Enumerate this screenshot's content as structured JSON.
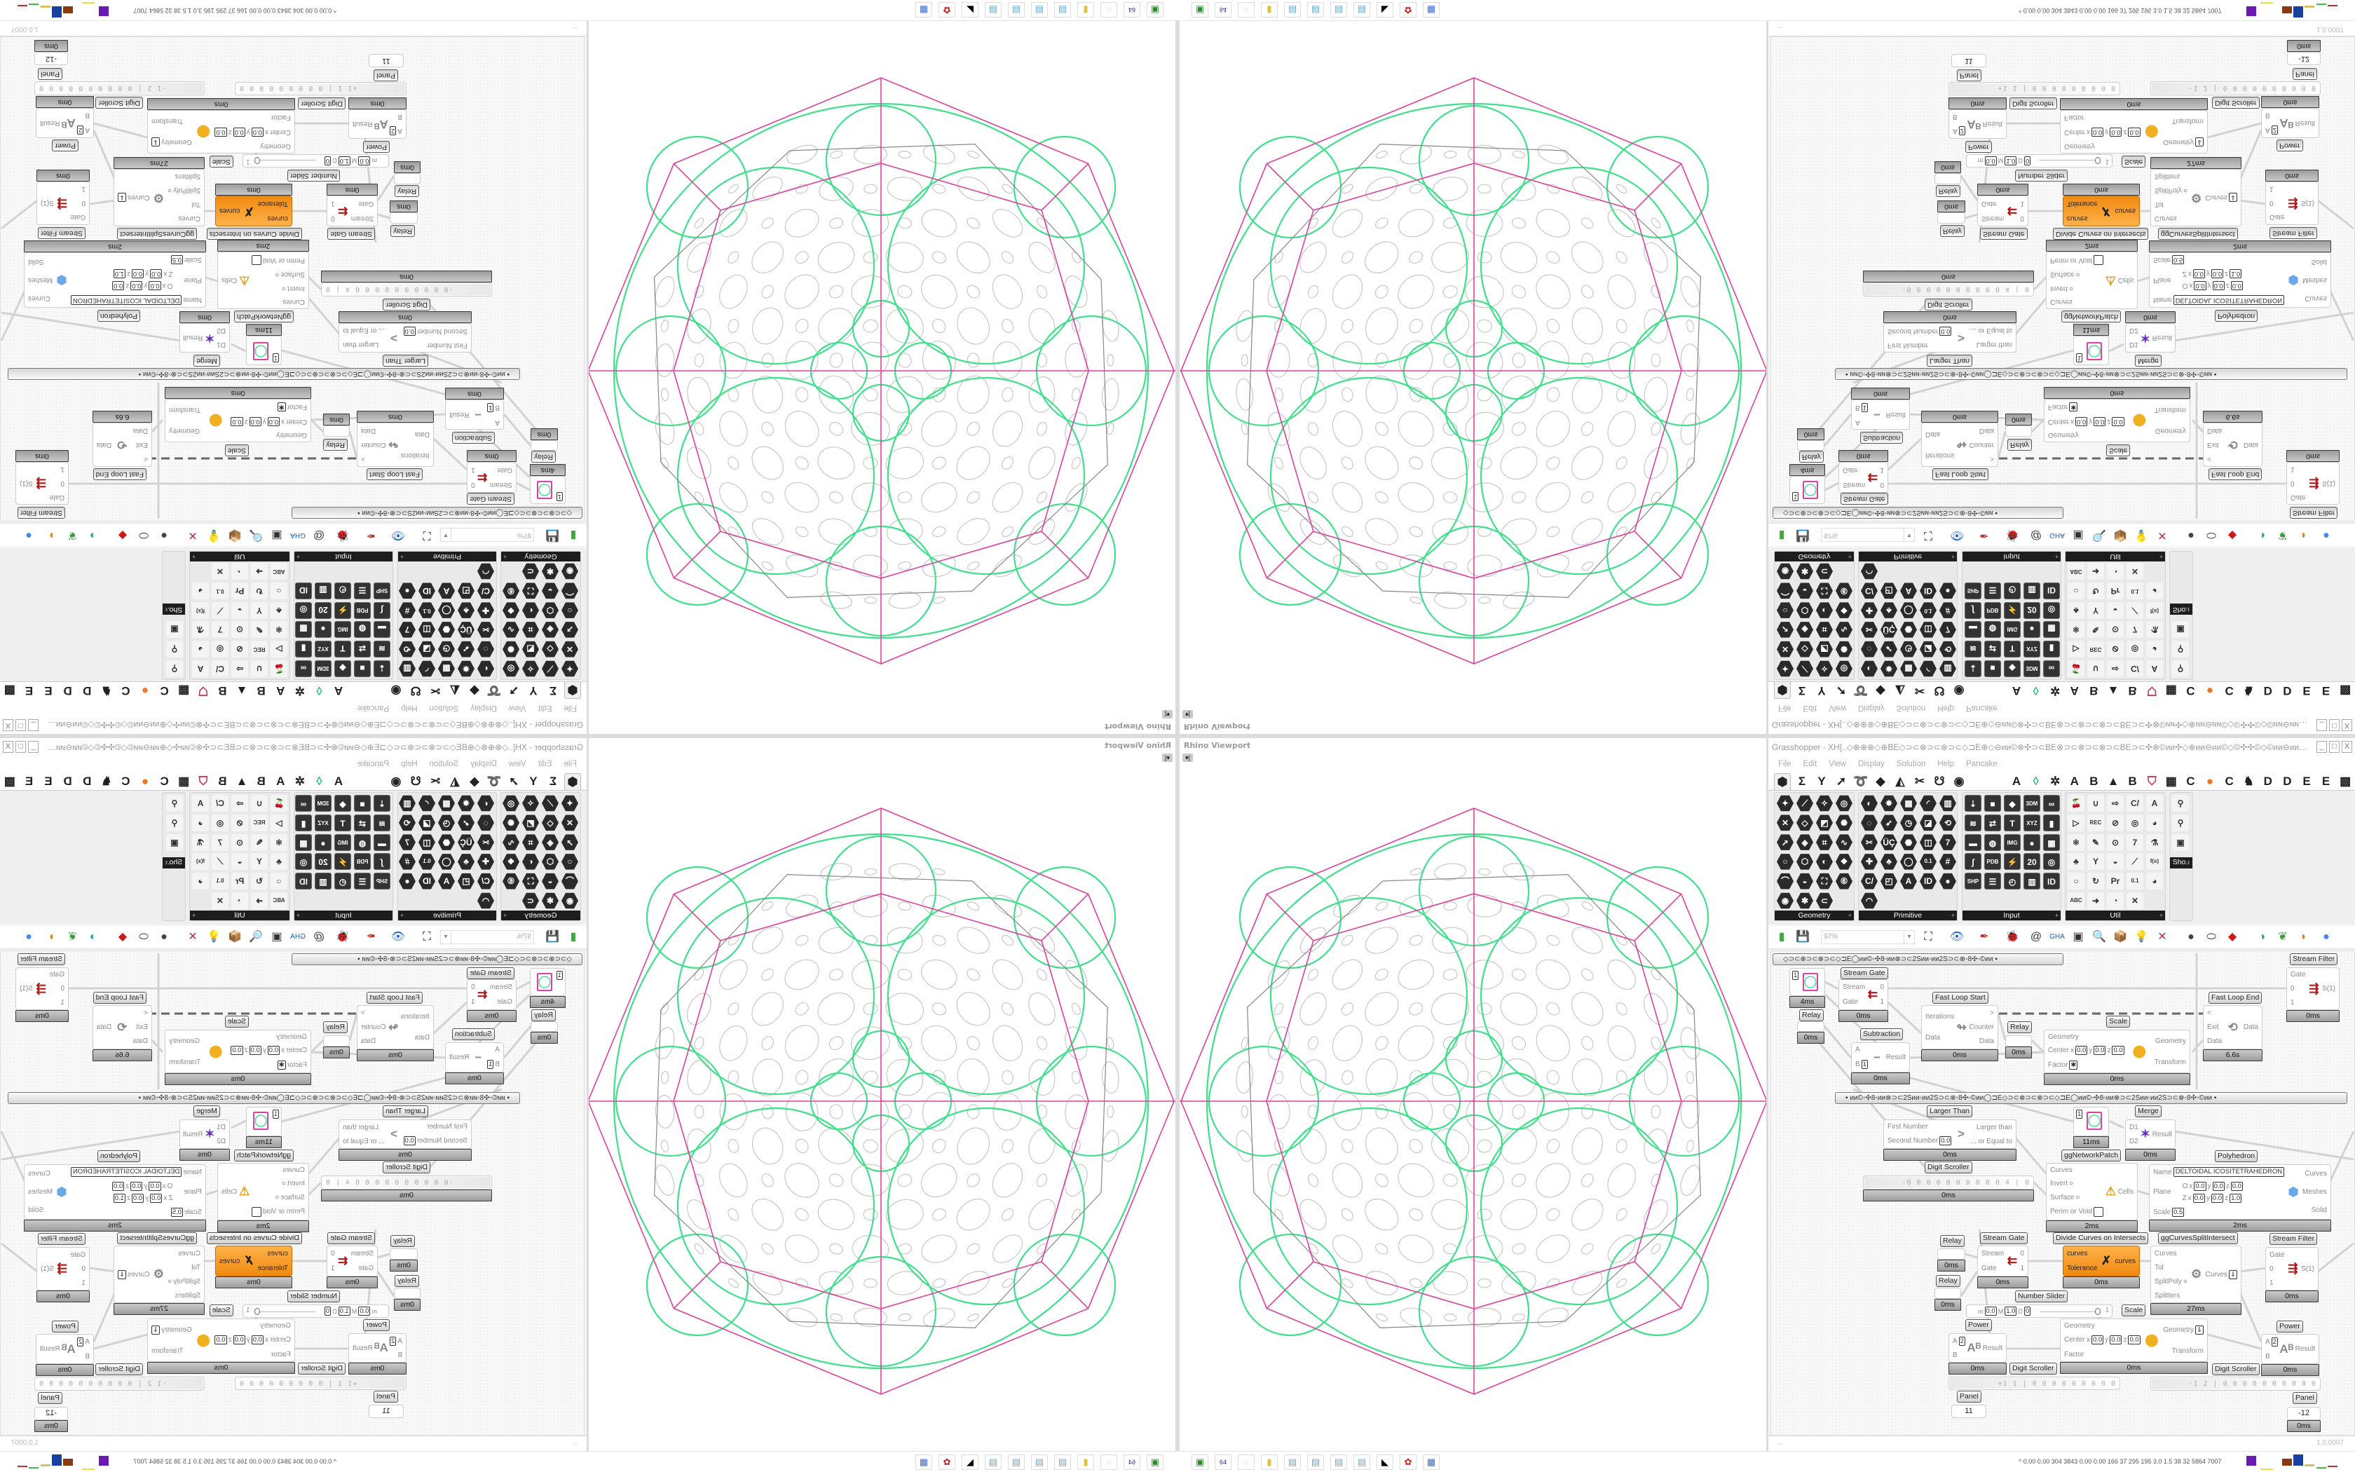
{
  "viewport": {
    "label": "Rhino Viewport",
    "menu_button": "▾|",
    "colors": {
      "outline": "#e0409a",
      "cells": "#3ee08a",
      "pattern": "#c8c8c8"
    }
  },
  "gh": {
    "title": "Grasshopper - XH[..◇⊗⊕⊗◇⊕BE◇⊃⊂⊗⊃⊂⊗⊃⊂◇⊐E⊕◇⊖ии©⊗✣⊃⊂BE⊗⊃⊂⊗⊃⊂⊗⊃⊂BE⊃⊂✣⊗©ии✣◇⊕ии⊖ии©◇©✣✣©◇©ии⊖ии⊕◇ии©⊗✣⊃⊂BE⊗⊃⊂⊗⊃⊂...",
    "window_buttons": [
      "_",
      "□",
      "X"
    ],
    "menu": [
      "File",
      "Edit",
      "View",
      "Display",
      "Solution",
      "Help",
      "Pancake"
    ],
    "tabs_left": [
      {
        "name": "params",
        "glyph": "⬢"
      },
      {
        "name": "maths",
        "glyph": "Σ"
      },
      {
        "name": "sets",
        "glyph": "Y"
      },
      {
        "name": "vector",
        "glyph": "➚"
      },
      {
        "name": "curve",
        "glyph": "➰"
      },
      {
        "name": "surface",
        "glyph": "◆"
      },
      {
        "name": "mesh",
        "glyph": "◭"
      },
      {
        "name": "intersect",
        "glyph": "✂"
      },
      {
        "name": "transform",
        "glyph": "☋"
      },
      {
        "name": "display",
        "glyph": "◉"
      }
    ],
    "tabs_right": [
      {
        "name": "a",
        "glyph": "A"
      },
      {
        "name": "crystal",
        "glyph": "◊",
        "color": "#2fbf7f"
      },
      {
        "name": "puzzle",
        "glyph": "✲"
      },
      {
        "name": "a2",
        "glyph": "A"
      },
      {
        "name": "b",
        "glyph": "B"
      },
      {
        "name": "mountain",
        "glyph": "▲"
      },
      {
        "name": "b2",
        "glyph": "B"
      },
      {
        "name": "shield",
        "glyph": "⛉",
        "color": "#c0304a"
      },
      {
        "name": "grid",
        "glyph": "▦"
      },
      {
        "name": "c",
        "glyph": "C"
      },
      {
        "name": "orange",
        "glyph": "●",
        "color": "#f07820"
      },
      {
        "name": "c2",
        "glyph": "C"
      },
      {
        "name": "bird",
        "glyph": "♞"
      },
      {
        "name": "d",
        "glyph": "D"
      },
      {
        "name": "d2",
        "glyph": "D"
      },
      {
        "name": "e",
        "glyph": "E"
      },
      {
        "name": "e2",
        "glyph": "E"
      },
      {
        "name": "grid2",
        "glyph": "▩"
      }
    ],
    "ribbon": [
      {
        "name": "Geometry",
        "style": "hex",
        "cols": 4,
        "icons": [
          "✦",
          "⟋",
          "✧",
          "◎",
          "✕",
          "◇",
          "◩",
          "✺",
          "➚",
          "◈",
          "⌗",
          "∿",
          "○",
          "⬡",
          "◐",
          "❖",
          "⌒",
          "◒",
          "⛶",
          "⑥",
          "◉",
          "✱",
          "⊂"
        ]
      },
      {
        "name": "Primitive",
        "style": "hex",
        "cols": 5,
        "icons": [
          "◐",
          "✸",
          "▦",
          "◜",
          "▥",
          "◌",
          "➶",
          "◷",
          "◪",
          "⟲",
          "✂",
          "ÜÇ",
          "⬣",
          "◫",
          "7",
          "✚",
          "♣",
          "◯",
          "0.1",
          "#",
          "C/",
          "◰",
          "A",
          "ID",
          "●",
          "◠"
        ]
      },
      {
        "name": "Input",
        "style": "sq",
        "cols": 5,
        "icons": [
          "⇣",
          "■",
          "◆",
          "3DM",
          "∞",
          "≋",
          "⇄",
          "T",
          "XYZ",
          "▮",
          "▬",
          "◍",
          "IMG",
          "●",
          "▩",
          "∫",
          "PDB",
          "⚡",
          "20",
          "◎",
          "SHP",
          "☰",
          "◴",
          "▥",
          "ID"
        ]
      },
      {
        "name": "Util",
        "style": "util",
        "cols": 5,
        "icons": [
          "🍒",
          "∪",
          "⇨",
          "C/",
          "A",
          "▷",
          "REC",
          "⊘",
          "◎",
          "◕",
          "⚛",
          "✎",
          "⊙",
          "7",
          "⚗",
          "♣",
          "Y",
          "◒",
          "⟋",
          "f(x)",
          "○",
          "↻",
          "Pr",
          "0.1",
          "◕",
          "ABC",
          "➜",
          "◔",
          "✕"
        ]
      },
      {
        "name": "Sho..",
        "style": "util",
        "cols": 1,
        "icons": [
          "⚲",
          "⚲",
          "▣"
        ]
      }
    ],
    "toolbar": {
      "zoom_value": "97%",
      "icons": [
        {
          "name": "new-document",
          "glyph": "▮",
          "color": "#3da83d"
        },
        {
          "name": "save",
          "glyph": "💾",
          "color": "#2a4bd0"
        },
        {
          "name": "zoom-extents",
          "glyph": "⛶"
        },
        {
          "name": "preview",
          "glyph": "👁",
          "color": "#2a6ed0"
        },
        {
          "name": "sketch",
          "glyph": "✒",
          "color": "#c0302a"
        },
        {
          "name": "bug",
          "glyph": "🐞"
        },
        {
          "name": "at",
          "glyph": "@"
        },
        {
          "name": "gha",
          "glyph": "GHA",
          "color": "#1b5fb4"
        },
        {
          "name": "cluster",
          "glyph": "▣"
        },
        {
          "name": "search",
          "glyph": "🔍"
        },
        {
          "name": "package",
          "glyph": "📦",
          "color": "#d04a8a"
        },
        {
          "name": "lightbulb",
          "glyph": "💡"
        },
        {
          "name": "wires",
          "glyph": "✕",
          "color": "#b0304a"
        },
        {
          "name": "bake",
          "glyph": "●",
          "color": "#444"
        },
        {
          "name": "cylinder",
          "glyph": "⬭"
        },
        {
          "name": "red-gem",
          "glyph": "◆",
          "color": "#d01818"
        },
        {
          "name": "teal-surface",
          "glyph": "◗",
          "color": "#1aa3a3"
        },
        {
          "name": "green-ribbon",
          "glyph": "❦",
          "color": "#3c9c3c"
        },
        {
          "name": "sphere-half",
          "glyph": "◑",
          "color": "#e08020"
        },
        {
          "name": "blue-sphere",
          "glyph": "●",
          "color": "#4a8ae0"
        }
      ]
    },
    "canvas": {
      "groups": [
        {
          "id": "group-a",
          "text": "◇⊃⊂⊗⊃⊂⊗⊃⊂◇⊐E◯ии©◦✣8◦ии⊗⊃⊂2Sии◦ии2S⊃⊂⊗◦8✣◦©ии        ▪"
        },
        {
          "id": "group-b",
          "text": "▪      ии©◦✣8◦ии⊗⊃⊂2Sии◦ии2S⊃⊂⊗◦8✣◦©ии◯⊐E◇⊃⊂⊗⊃⊂⊗⊃⊂◇⊐E◯ии©◦✣8◦ии⊗⊃⊂2Sии◦ии2S⊃⊂⊗◦8✣◦©ии      ▪"
        }
      ],
      "fast_loop_link": "dashed",
      "components": [
        {
          "id": "sf1",
          "type": "std",
          "label": "Stream Filter",
          "inputs": [
            {
              "n": "Gate"
            },
            {
              "n": "0"
            },
            {
              "n": "1"
            }
          ],
          "outputs": [
            {
              "n": "S(1)"
            }
          ],
          "icon": "⇶",
          "icon_color": "#b01818",
          "time": "0ms"
        },
        {
          "id": "sw1",
          "type": "swatch",
          "value": "1",
          "time": "4ms"
        },
        {
          "id": "sg1",
          "type": "std",
          "label": "Stream Gate",
          "inputs": [
            {
              "n": "Stream"
            },
            {
              "n": "Gate"
            }
          ],
          "outputs": [
            {
              "n": "0"
            },
            {
              "n": "1"
            }
          ],
          "icon": "⇇",
          "icon_color": "#b01818",
          "time": "0ms"
        },
        {
          "id": "r1",
          "type": "relay",
          "label": "Relay",
          "time": "0ms"
        },
        {
          "id": "fls",
          "type": "std",
          "label": "Fast Loop Start",
          "inputs": [
            {
              "n": "Iterations"
            },
            {
              "n": "Data"
            }
          ],
          "outputs": [
            {
              "n": ">"
            },
            {
              "n": "Counter"
            },
            {
              "n": "Data"
            }
          ],
          "icon": "↬",
          "time": "0ms"
        },
        {
          "id": "r2",
          "type": "relay",
          "label": "Relay",
          "time": "0ms"
        },
        {
          "id": "sub",
          "type": "std",
          "label": "Subtraction",
          "inputs": [
            {
              "n": "A"
            },
            {
              "n": "B",
              "v": "1"
            }
          ],
          "outputs": [
            {
              "n": "Result"
            }
          ],
          "icon": "−",
          "time": "0ms"
        },
        {
          "id": "sc1",
          "type": "std",
          "label": "Scale",
          "inputs": [
            {
              "n": "Geometry"
            },
            {
              "n": "Center",
              "xyz": [
                "0.0",
                "0.0",
                "0.0"
              ]
            },
            {
              "n": "Factor",
              "star": "✱"
            }
          ],
          "outputs": [
            {
              "n": "Geometry"
            },
            {
              "n": "Transform"
            }
          ],
          "icon": "⬤",
          "icon_color": "#f0b020",
          "time": "0ms"
        },
        {
          "id": "fle",
          "type": "std",
          "label": "Fast Loop End",
          "inputs": [
            {
              "n": "<"
            },
            {
              "n": "Exit"
            },
            {
              "n": "Data"
            }
          ],
          "outputs": [
            {
              "n": "Data"
            }
          ],
          "icon": "⟲",
          "time": "6.6s"
        },
        {
          "id": "lt",
          "type": "std",
          "label": "Larger Than",
          "inputs": [
            {
              "n": "First Number"
            },
            {
              "n": "Second Number",
              "v": "0.0"
            }
          ],
          "outputs": [
            {
              "n": "Larger than"
            },
            {
              "n": "... or Equal to"
            }
          ],
          "icon": ">",
          "time": "0ms"
        },
        {
          "id": "sw2",
          "type": "swatch",
          "value": "1",
          "time": "11ms"
        },
        {
          "id": "mg",
          "type": "std",
          "label": "Merge",
          "inputs": [
            {
              "n": "D1"
            },
            {
              "n": "D2"
            }
          ],
          "outputs": [
            {
              "n": "Result"
            }
          ],
          "icon": "✶",
          "icon_color": "#6a30c0",
          "time": "0ms"
        },
        {
          "id": "np",
          "type": "std",
          "label": "ggNetworkPatch",
          "inputs": [
            {
              "n": "Curves"
            },
            {
              "n": "Invert",
              "toggle": "○"
            },
            {
              "n": "Surface",
              "toggle": "○"
            },
            {
              "n": "Perim or Void",
              "box": " "
            }
          ],
          "outputs": [
            {
              "n": "Cells"
            }
          ],
          "icon": "⚠",
          "icon_color": "#e0a020",
          "time": "2ms"
        },
        {
          "id": "ph",
          "type": "std",
          "label": "Polyhedron",
          "inputs": [
            {
              "n": "Name",
              "text": "DELTOIDAL ICOSITETRAHEDRON"
            },
            {
              "n": "Plane",
              "rows": [
                {
                  "axis": "O",
                  "xyz": [
                    "0.0",
                    "0.0",
                    "0.0"
                  ]
                },
                {
                  "axis": "Z",
                  "xyz": [
                    "0.0",
                    "0.0",
                    "1.0"
                  ]
                }
              ]
            },
            {
              "n": "Scale",
              "v": "0.5"
            }
          ],
          "outputs": [
            {
              "n": "Curves"
            },
            {
              "n": "Meshes"
            },
            {
              "n": "Solid"
            }
          ],
          "icon": "⬢",
          "icon_color": "#6aa8ea",
          "time": "2ms"
        },
        {
          "id": "ds1",
          "type": "digits",
          "label": "Digit Scroller",
          "value": "·0 0 0 0 0 0 0 0 0 0 4 | 0",
          "time": "0ms"
        },
        {
          "id": "r3",
          "type": "relay",
          "label": "Relay",
          "time": "0ms"
        },
        {
          "id": "sg2",
          "type": "std",
          "label": "Stream Gate",
          "inputs": [
            {
              "n": "Stream"
            },
            {
              "n": "Gate"
            }
          ],
          "outputs": [
            {
              "n": "0"
            },
            {
              "n": "1"
            }
          ],
          "icon": "⇇",
          "icon_color": "#b01818",
          "time": "0ms"
        },
        {
          "id": "dc",
          "type": "std",
          "orange": true,
          "label": "Divide Curves on Intersects",
          "inputs": [
            {
              "n": "curves"
            },
            {
              "n": "Tolerance"
            }
          ],
          "outputs": [
            {
              "n": "curves"
            }
          ],
          "icon": "✗",
          "icon_color": "#222",
          "time": "0ms"
        },
        {
          "id": "cs",
          "type": "std",
          "label": "ggCurvesSplitIntersect",
          "inputs": [
            {
              "n": "Curves"
            },
            {
              "n": "Tol"
            },
            {
              "n": "SplitPoly",
              "toggle": "○"
            },
            {
              "n": "Splitters"
            }
          ],
          "outputs": [
            {
              "n": "Curves",
              "flag": "⇓"
            }
          ],
          "icon": "⚙",
          "time": "27ms"
        },
        {
          "id": "sf2",
          "type": "std",
          "label": "Stream Filter",
          "inputs": [
            {
              "n": "Gate"
            },
            {
              "n": "0"
            },
            {
              "n": "1"
            }
          ],
          "outputs": [
            {
              "n": "S(1)"
            }
          ],
          "icon": "⇶",
          "icon_color": "#b01818",
          "time": "0ms"
        },
        {
          "id": "r4",
          "type": "relay",
          "label": "Relay",
          "time": "0ms"
        },
        {
          "id": "ns",
          "type": "slider",
          "label": "Number Slider",
          "min": "0.0",
          "max": "1.0",
          "decimals": "0",
          "value": "1",
          "fraction": 1.0
        },
        {
          "id": "sc2",
          "type": "std",
          "label": "Scale",
          "inputs": [
            {
              "n": "Geometry"
            },
            {
              "n": "Center",
              "xyz": [
                "0.0",
                "0.0",
                "0.0"
              ]
            },
            {
              "n": "Factor"
            }
          ],
          "outputs": [
            {
              "n": "Geometry",
              "flag": "⇓"
            },
            {
              "n": "Transform"
            }
          ],
          "icon": "⬤",
          "icon_color": "#f0b020",
          "time": "0ms"
        },
        {
          "id": "pw1",
          "type": "std",
          "label": "Power",
          "inputs": [
            {
              "n": "A",
              "v": "2"
            },
            {
              "n": "B"
            }
          ],
          "outputs": [
            {
              "n": "Result"
            }
          ],
          "icon": "Aᴮ",
          "time": "0ms"
        },
        {
          "id": "pw2",
          "type": "std",
          "label": "Power",
          "inputs": [
            {
              "n": "A",
              "v": "2"
            },
            {
              "n": "B"
            }
          ],
          "outputs": [
            {
              "n": "Result"
            }
          ],
          "icon": "Aᴮ",
          "time": "0ms"
        },
        {
          "id": "ds2",
          "type": "digits",
          "label": "Digit Scroller",
          "value": "+1 1 | 0 0 0 0 0 0 0 0 0"
        },
        {
          "id": "ds3",
          "type": "digits",
          "label": "Digit Scroller",
          "value": "-1 2 | 0 0 0 0 0 0 0 0 0 0"
        },
        {
          "id": "pn1",
          "type": "panel",
          "label": "Panel",
          "value": "11"
        },
        {
          "id": "pn2",
          "type": "panel",
          "label": "Panel",
          "value": "-12",
          "time": "0ms"
        }
      ]
    },
    "status": {
      "left": "...",
      "version": "1.0.0007"
    }
  },
  "taskbar": {
    "icons": [
      {
        "name": "device",
        "glyph": "▣",
        "color": "#2a8a2a"
      },
      {
        "name": "floppy-64",
        "glyph": "64",
        "color": "#2a2aa0"
      },
      {
        "name": "blank",
        "glyph": "○",
        "color": "#ddd"
      },
      {
        "name": "folder",
        "glyph": "▮",
        "color": "#e0c040"
      },
      {
        "name": "notepad",
        "glyph": "▤",
        "color": "#6aa8c8"
      },
      {
        "name": "notepad",
        "glyph": "▤",
        "color": "#6aa8c8"
      },
      {
        "name": "notepad",
        "glyph": "▤",
        "color": "#6aa8c8"
      },
      {
        "name": "notepad",
        "glyph": "▤",
        "color": "#6aa8c8"
      },
      {
        "name": "wolf",
        "glyph": "◣",
        "color": "#000"
      },
      {
        "name": "red-app",
        "glyph": "✿",
        "color": "#d01818"
      },
      {
        "name": "calculator",
        "glyph": "▦",
        "color": "#3a6ad0"
      }
    ],
    "stats": "^  0.00 0.00 304 3843 0.00 0.00 166  37  295  195  3.0  1.5  38  32  5864 7007",
    "meter_colors": [
      "#6a1ab0",
      "#e8e040",
      "#8a3a10",
      "#1a40a0",
      "#d8c060",
      "#40c040",
      "#c03030"
    ]
  }
}
